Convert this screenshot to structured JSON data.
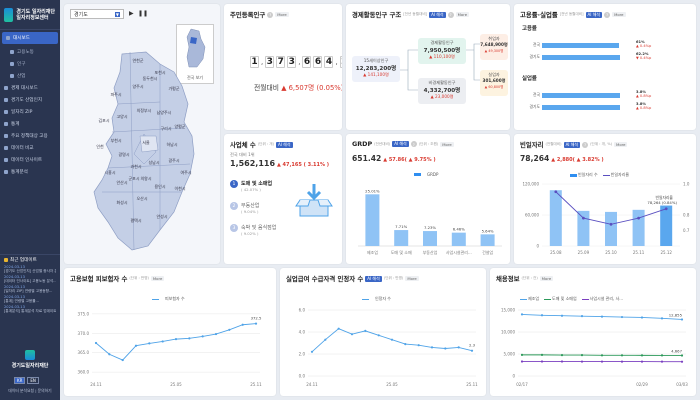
{
  "sidebar": {
    "logo": "경기도 일자리재단 일자리정보센터",
    "items": [
      {
        "label": "대시보드",
        "active": true
      },
      {
        "label": "고용노동",
        "sub": true
      },
      {
        "label": "인구",
        "sub": true
      },
      {
        "label": "산업",
        "sub": true
      },
      {
        "label": "경제 대시보드"
      },
      {
        "label": "경기도 산업인지"
      },
      {
        "label": "일자리 ZIP"
      },
      {
        "label": "통계"
      },
      {
        "label": "주요 정책대상 고용"
      },
      {
        "label": "데이터 비교"
      },
      {
        "label": "데이터 인사이트"
      },
      {
        "label": "통계분석"
      }
    ],
    "updates_title": "최근 업데이트",
    "updates": [
      {
        "date": "2024-03-13",
        "text": "[경기도 산업인지] 산업별 종사자 분포 연구..."
      },
      {
        "date": "2024-03-13",
        "text": "[데이터 인사이트] 고용노동 분석..."
      },
      {
        "date": "2024-03-13",
        "text": "[일자리 ZIP] 연령별 고용동향..."
      },
      {
        "date": "2024-03-13",
        "text": "[통계] 연령별 고용률..."
      },
      {
        "date": "2024-03-13",
        "text": "[통계분석] 통계분석 자료 업데이트..."
      }
    ],
    "foot_logo": "경기도일자리재단",
    "lang": [
      "KR",
      "EN"
    ],
    "footer": "데이터 분석요청 | 문의하기"
  },
  "map": {
    "region_select": "경기도",
    "inset_label": "전국 보기",
    "districts": [
      "연천군",
      "포천시",
      "가평군",
      "파주시",
      "양주시",
      "동두천시",
      "김포시",
      "고양시",
      "의정부시",
      "남양주시",
      "양평군",
      "부천시",
      "서울",
      "구리시",
      "하남시",
      "인천",
      "광명시",
      "과천시",
      "성남시",
      "광주시",
      "여주시",
      "시흥시",
      "안산시",
      "군포시",
      "의왕시",
      "용인시",
      "이천시",
      "화성시",
      "오산시",
      "평택시",
      "안성시"
    ]
  },
  "population": {
    "title": "주민등록인구",
    "more": "More",
    "digits": [
      "1",
      "3",
      "7",
      "3",
      "6",
      "6",
      "4",
      "2"
    ],
    "unit": "명",
    "change_label": "전월대비",
    "change_value": "6,507명",
    "change_pct": "(0.05%)"
  },
  "econ": {
    "title": "경제활동인구 구조",
    "unit": "[전년 동월대비]",
    "ai": "AI 해석",
    "more": "More",
    "root": {
      "label": "15세이상인구",
      "value": "12,283,200명",
      "chg": "▲ 141,100명"
    },
    "active": {
      "label": "경제활동인구",
      "value": "7,950,500명",
      "chg": "▲ 110,100명"
    },
    "inactive": {
      "label": "비경제활동인구",
      "value": "4,332,700명",
      "chg": "▲ 23,000명"
    },
    "employed": {
      "label": "취업자",
      "value": "7,648,900명",
      "chg": "▲ 49,300명"
    },
    "unemployed": {
      "label": "실업자",
      "value": "301,600명",
      "chg": "▲ 60,800명"
    }
  },
  "rates": {
    "title": "고용률·실업률",
    "unit": "[전년 동월대비]",
    "ai": "AI 해석",
    "more": "More",
    "employment_label": "고용률",
    "unemployment_label": "실업률",
    "employment": [
      {
        "region": "전국",
        "value": 61,
        "value_text": "61%",
        "chg": "▲ 0.4%p"
      },
      {
        "region": "경기도",
        "value": 62.2,
        "value_text": "62.2%",
        "chg": "▼ 0.4%p"
      }
    ],
    "unemployment": [
      {
        "region": "전국",
        "value": 3.8,
        "value_text": "3.8%",
        "chg": "▲ 0.8%p"
      },
      {
        "region": "경기도",
        "value": 3.8,
        "value_text": "3.8%",
        "chg": "▲ 0.8%p"
      }
    ]
  },
  "business": {
    "title": "사업체 수",
    "unit": "(단위 : 개)",
    "ai": "AI 해석",
    "sub": "전국 대비 1위",
    "value": "1,562,116",
    "chg": "▲ 47,165 ( 3.11% )",
    "items": [
      {
        "rank": "1",
        "name": "도매 및 소매업",
        "pct": "( 42.07% )"
      },
      {
        "rank": "2",
        "name": "부동산업",
        "pct": "( 9.04% )"
      },
      {
        "rank": "3",
        "name": "숙박 및 음식점업",
        "pct": "( 9.02% )"
      }
    ]
  },
  "grdp": {
    "title": "GRDP",
    "unit": "(전년대비)",
    "ai": "AI 해석",
    "unit2": "(단위 : 조원)",
    "more": "More",
    "value": "651.42",
    "chg": "▲ 57.86( ▲ 9.75% )",
    "legend": "GRDP"
  },
  "vacancy": {
    "title": "빈일자리",
    "unit": "(전월대비)",
    "ai": "AI 해석",
    "unit2": "(단위 : 개, %)",
    "more": "More",
    "value": "78,264",
    "chg": "▲ 2,880( ▲ 3.82% )",
    "legend_bar": "빈일자리 수",
    "legend_line": "빈일자리율",
    "callout": "78,264 (0.84%)",
    "callout_label": "빈일자리율"
  },
  "insured": {
    "title": "고용보험 피보험자 수",
    "unit": "(단위 : 만명)",
    "more": "More",
    "legend": "피보험자 수"
  },
  "benefit": {
    "title": "실업급여 수급자격 인정자 수",
    "ai": "AI 해석",
    "unit": "(단위 : 만명)",
    "more": "More",
    "legend": "인정자 수"
  },
  "hiring": {
    "title": "채용정보",
    "unit": "(단위 : 건)",
    "more": "More",
    "legend": [
      "제조업",
      "도매 및 소매업",
      "사업시설 관리, 사..."
    ]
  },
  "chart_data": [
    {
      "type": "bar",
      "title": "GRDP",
      "categories": [
        "제조업",
        "도매 및 소매",
        "부동산업",
        "사업시설관리...",
        "건설업"
      ],
      "values": [
        25.01,
        7.71,
        7.23,
        6.46,
        5.64
      ],
      "labels": [
        "25.01%",
        "7.71%",
        "7.23%",
        "6.46%",
        "5.64%"
      ],
      "ylim": [
        0,
        30
      ],
      "series": [
        {
          "name": "GRDP"
        }
      ]
    },
    {
      "type": "bar",
      "title": "빈일자리",
      "categories": [
        "25.08",
        "25.09",
        "25.10",
        "25.11",
        "25.12"
      ],
      "series": [
        {
          "name": "빈일자리 수",
          "values": [
            108000,
            68000,
            66000,
            70000,
            78264
          ]
        },
        {
          "name": "빈일자리율",
          "values": [
            0.95,
            0.78,
            0.74,
            0.78,
            0.84
          ]
        }
      ],
      "y_ticks": [
        "0",
        "60,000",
        "120,000"
      ],
      "y2_ticks": [
        "0.7",
        "0.8",
        "1.0"
      ],
      "ylim": [
        0,
        120000
      ],
      "y2lim": [
        0.6,
        1.0
      ]
    },
    {
      "type": "line",
      "title": "고용보험 피보험자 수",
      "x": [
        "24.11",
        "24.12",
        "25.01",
        "25.02",
        "25.03",
        "25.04",
        "25.05",
        "25.06",
        "25.07",
        "25.08",
        "25.09",
        "25.10",
        "25.11"
      ],
      "series": [
        {
          "name": "피보험자 수",
          "values": [
            367.5,
            364.6,
            363.1,
            366.8,
            367.4,
            367.9,
            368.5,
            368.7,
            369.2,
            369.8,
            370.9,
            372.2,
            372.5
          ]
        }
      ],
      "x_ticks": [
        "24.11",
        "25.05",
        "25.11"
      ],
      "y_ticks": [
        "360.0",
        "365.0",
        "370.0",
        "375.0"
      ],
      "ylim": [
        359,
        376
      ],
      "end_label": "372.5"
    },
    {
      "type": "line",
      "title": "실업급여 수급자격 인정자 수",
      "x": [
        "24.11",
        "24.12",
        "25.01",
        "25.02",
        "25.03",
        "25.04",
        "25.05",
        "25.06",
        "25.07",
        "25.08",
        "25.09",
        "25.10",
        "25.11"
      ],
      "series": [
        {
          "name": "인정자 수",
          "values": [
            2.2,
            3.3,
            4.3,
            3.8,
            4.1,
            3.7,
            3.3,
            2.9,
            2.8,
            2.6,
            2.5,
            2.6,
            2.3
          ]
        }
      ],
      "x_ticks": [
        "24.11",
        "25.05",
        "25.11"
      ],
      "y_ticks": [
        "0.0",
        "2.0",
        "4.0",
        "6.0"
      ],
      "ylim": [
        0,
        6
      ],
      "end_label": "2.3"
    },
    {
      "type": "line",
      "title": "채용정보",
      "x": [
        "02/17",
        "02/19",
        "02/21",
        "02/23",
        "02/25",
        "02/27",
        "02/29",
        "03/01",
        "03/03"
      ],
      "series": [
        {
          "name": "제조업",
          "values": [
            14000,
            13800,
            13700,
            13600,
            13500,
            13400,
            13300,
            13100,
            12855
          ]
        },
        {
          "name": "도매 및 소매업",
          "values": [
            4800,
            4800,
            4750,
            4750,
            4700,
            4700,
            4690,
            4680,
            4667
          ]
        },
        {
          "name": "사업시설 관리, 사...",
          "values": [
            3300,
            3300,
            3290,
            3280,
            3280,
            3270,
            3270,
            3260,
            3250
          ]
        }
      ],
      "x_ticks": [
        "02/17",
        "02/29",
        "03/03"
      ],
      "y_ticks": [
        "0",
        "5,000",
        "10,000",
        "15,000"
      ],
      "ylim": [
        0,
        15000
      ],
      "end_labels": [
        "12,855",
        "4,667"
      ]
    }
  ],
  "colors": {
    "accent": "#3a66c6",
    "up": "#d93a30",
    "bar": "#2f8ef0",
    "line": "#5a4fc0",
    "green": "#2c9a5a",
    "purple": "#7a3fc0"
  }
}
